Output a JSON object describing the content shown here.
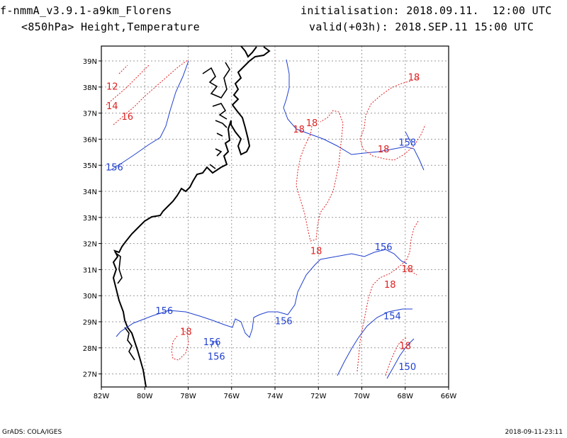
{
  "header": {
    "model": "f-nmmA_v3.9.1-a9km_Florens",
    "level_field": "<850hPa> Height,Temperature",
    "init": "initialisation: 2018.09.11.  12:00 UTC",
    "valid": "valid(+03h): 2018.SEP.11 15:00 UTC"
  },
  "footer": {
    "left": "GrADS: COLA/IGES",
    "right": "2018-09-11-23:11"
  },
  "colors": {
    "height": "#2040d0",
    "temperature": "#e02020",
    "coast": "#000000",
    "grid": "#9a9a9a"
  },
  "map": {
    "lon_ticks": [
      "82W",
      "80W",
      "78W",
      "76W",
      "74W",
      "72W",
      "70W",
      "68W",
      "66W"
    ],
    "lat_ticks": [
      "39N",
      "38N",
      "37N",
      "36N",
      "35N",
      "34N",
      "33N",
      "32N",
      "31N",
      "30N",
      "29N",
      "28N",
      "27N"
    ]
  },
  "contour_labels": {
    "temperature": [
      {
        "text": "12",
        "lon": -81.5,
        "lat": 37.9
      },
      {
        "text": "14",
        "lon": -81.5,
        "lat": 37.15
      },
      {
        "text": "16",
        "lon": -80.8,
        "lat": 36.75
      },
      {
        "text": "18",
        "lon": -72.9,
        "lat": 36.25
      },
      {
        "text": "18",
        "lon": -72.3,
        "lat": 36.5
      },
      {
        "text": "18",
        "lon": -67.6,
        "lat": 38.25
      },
      {
        "text": "18",
        "lon": -69.0,
        "lat": 35.5
      },
      {
        "text": "18",
        "lon": -72.1,
        "lat": 31.6
      },
      {
        "text": "18",
        "lon": -67.9,
        "lat": 30.9
      },
      {
        "text": "18",
        "lon": -68.7,
        "lat": 30.3
      },
      {
        "text": "18",
        "lon": -78.1,
        "lat": 28.5
      },
      {
        "text": "18",
        "lon": -68.0,
        "lat": 27.95
      }
    ],
    "height": [
      {
        "text": "156",
        "lon": -81.4,
        "lat": 34.8
      },
      {
        "text": "158",
        "lon": -67.9,
        "lat": 35.75
      },
      {
        "text": "156",
        "lon": -69.0,
        "lat": 31.75
      },
      {
        "text": "156",
        "lon": -73.6,
        "lat": 28.9
      },
      {
        "text": "156",
        "lon": -79.1,
        "lat": 29.3
      },
      {
        "text": "156",
        "lon": -76.9,
        "lat": 28.1
      },
      {
        "text": "156",
        "lon": -76.7,
        "lat": 27.55
      },
      {
        "text": "154",
        "lon": -68.6,
        "lat": 29.1
      },
      {
        "text": "150",
        "lon": -67.9,
        "lat": 27.15
      }
    ]
  }
}
